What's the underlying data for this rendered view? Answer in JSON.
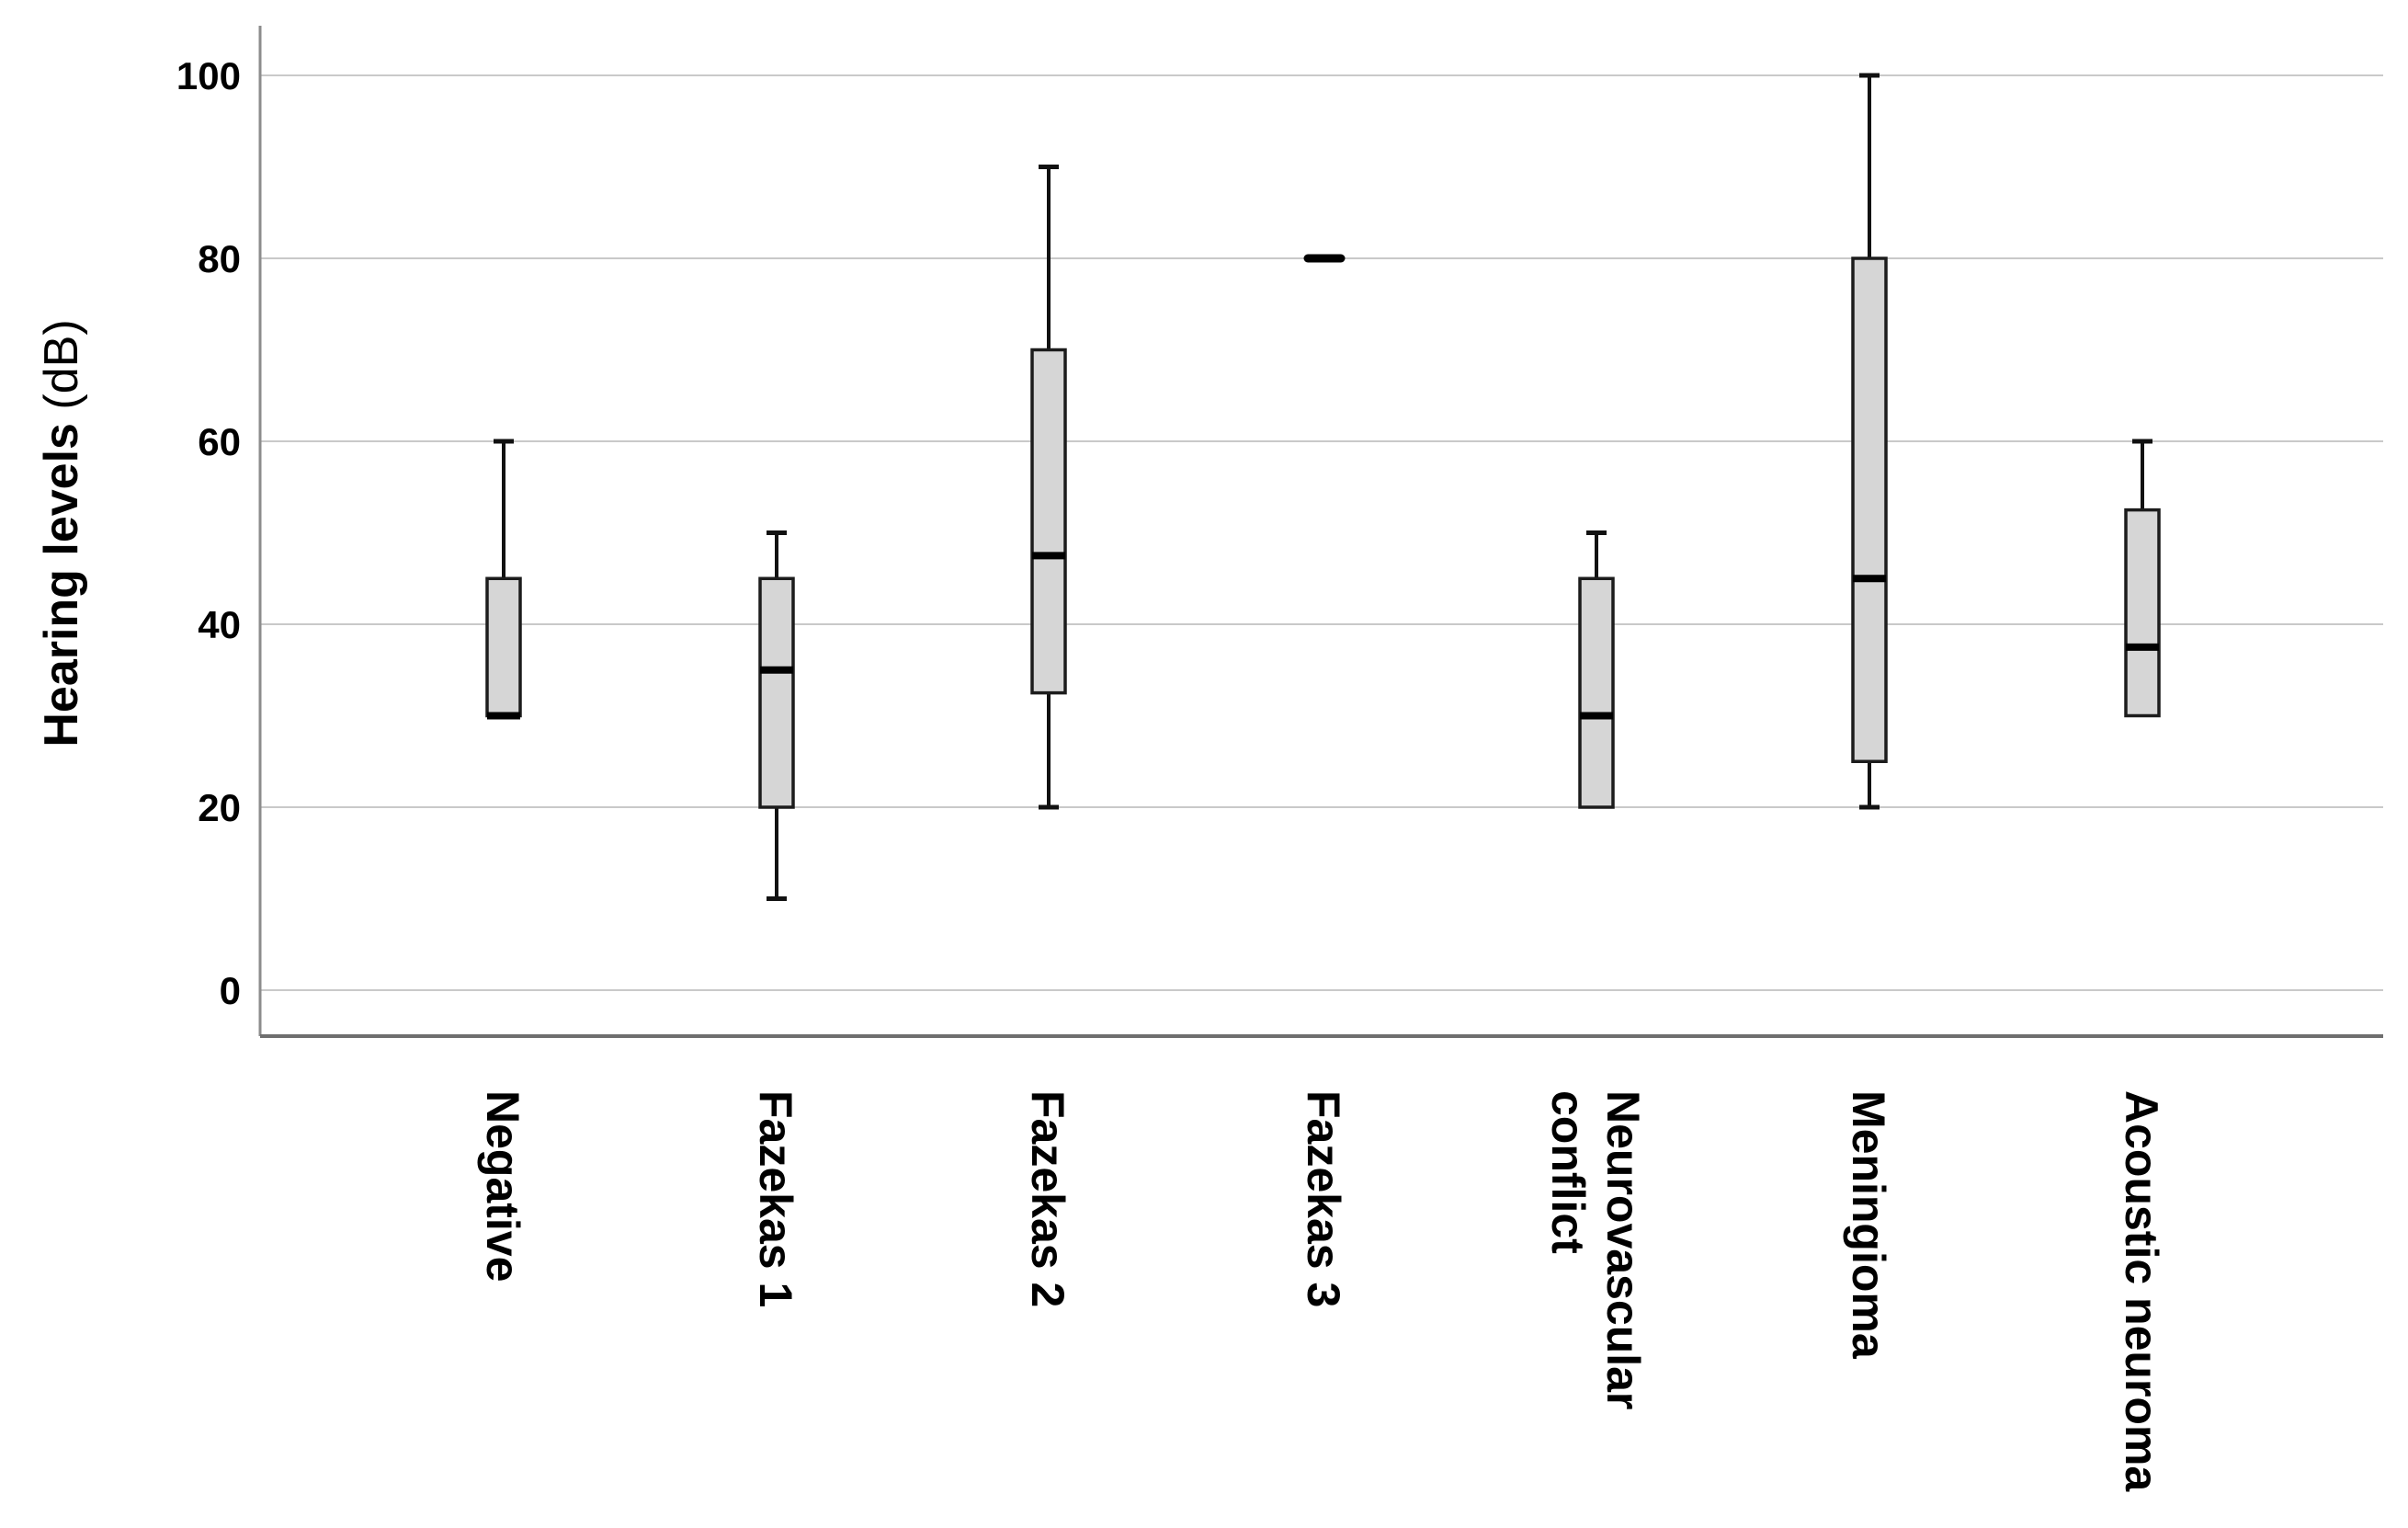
{
  "chart_data": {
    "type": "box",
    "title": "",
    "xlabel": "",
    "ylabel_bold": "Hearing levels",
    "ylabel_unit": "(dB)",
    "ylim": [
      0,
      100
    ],
    "yticks": [
      100,
      80,
      60,
      40,
      20,
      0
    ],
    "grid": "horizontal",
    "legend": "none",
    "categories": [
      "Negative",
      "Fazekas 1",
      "Fazekas 2",
      "Fazekas 3",
      "Neurovascular conflict",
      "Meningioma",
      "Acoustic neuroma"
    ],
    "boxes": [
      {
        "category": "Negative",
        "label_lines": [
          "Negative"
        ],
        "whisker_low": 30,
        "q1": 30,
        "median": 30,
        "q3": 45,
        "whisker_high": 60
      },
      {
        "category": "Fazekas 1",
        "label_lines": [
          "Fazekas 1"
        ],
        "whisker_low": 10,
        "q1": 20,
        "median": 35,
        "q3": 45,
        "whisker_high": 50
      },
      {
        "category": "Fazekas 2",
        "label_lines": [
          "Fazekas 2"
        ],
        "whisker_low": 20,
        "q1": 32.5,
        "median": 47.5,
        "q3": 70,
        "whisker_high": 90
      },
      {
        "category": "Fazekas 3",
        "label_lines": [
          "Fazekas 3"
        ],
        "single_value": 80
      },
      {
        "category": "Neurovascular conflict",
        "label_lines": [
          "Neurovascular",
          "conflict"
        ],
        "whisker_low": 20,
        "q1": 20,
        "median": 30,
        "q3": 45,
        "whisker_high": 50
      },
      {
        "category": "Meningioma",
        "label_lines": [
          "Meningioma"
        ],
        "whisker_low": 20,
        "q1": 25,
        "median": 45,
        "q3": 80,
        "whisker_high": 100
      },
      {
        "category": "Acoustic neuroma",
        "label_lines": [
          "Acoustic neuroma"
        ],
        "whisker_low": 30,
        "q1": 30,
        "median": 37.5,
        "q3": 52.5,
        "whisker_high": 60
      }
    ],
    "colors": {
      "box_fill": "#d6d6d6",
      "box_border": "#1c1c1c",
      "median": "#000000",
      "whisker": "#111111",
      "gridline": "#c9c9c9",
      "y_axis_line": "#8c8c8c",
      "x_axis_line": "#6e6e6e",
      "text": "#000000",
      "background": "#ffffff"
    }
  }
}
